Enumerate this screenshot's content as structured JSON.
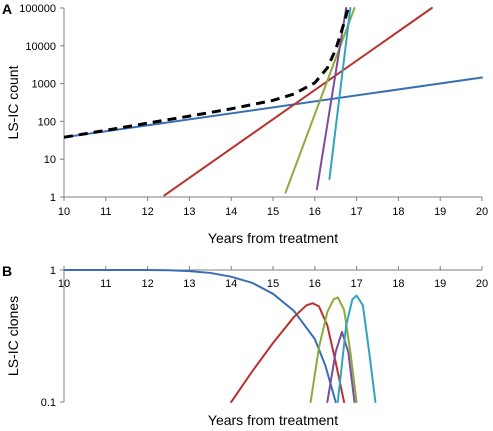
{
  "chart_data": [
    {
      "panel_label": "A",
      "type": "line",
      "xlabel": "Years from treatment",
      "ylabel": "LS-IC count",
      "xlim": [
        10,
        20
      ],
      "ylim": [
        1,
        100000
      ],
      "yscale": "log",
      "grid": false,
      "legend": "none",
      "x_ticks": [
        "10",
        "11",
        "12",
        "13",
        "14",
        "15",
        "16",
        "17",
        "18",
        "19",
        "20"
      ],
      "y_ticks": [
        "1",
        "10",
        "100",
        "1000",
        "10000",
        "100000"
      ],
      "series": [
        {
          "color": "#3a6fb5",
          "style": "solid",
          "x": [
            10,
            20
          ],
          "y": [
            38,
            1450
          ]
        },
        {
          "color": "#b8322f",
          "style": "solid",
          "x": [
            12.4,
            18.8
          ],
          "y": [
            1.1,
            100000
          ]
        },
        {
          "color": "#8aac3c",
          "style": "solid",
          "x": [
            15.3,
            16.95
          ],
          "y": [
            1.3,
            100000
          ]
        },
        {
          "color": "#7b4d9b",
          "style": "solid",
          "x": [
            16.05,
            16.75
          ],
          "y": [
            1.6,
            100000
          ]
        },
        {
          "color": "#30a5bf",
          "style": "solid",
          "x": [
            16.35,
            16.85
          ],
          "y": [
            3.0,
            100000
          ]
        },
        {
          "color": "#000000",
          "style": "dashed",
          "x": [
            10,
            11,
            12,
            13,
            14,
            15,
            15.5,
            16,
            16.3,
            16.5,
            16.7,
            16.8
          ],
          "y": [
            38,
            58,
            90,
            138,
            215,
            360,
            530,
            1050,
            2600,
            8000,
            40000,
            100000
          ]
        }
      ]
    },
    {
      "panel_label": "B",
      "type": "line",
      "xlabel": "Years from treatment",
      "ylabel": "LS-IC clones",
      "xlim": [
        10,
        20
      ],
      "ylim": [
        0.1,
        1
      ],
      "yscale": "log",
      "grid": false,
      "legend": "none",
      "x_ticks": [
        "10",
        "11",
        "12",
        "13",
        "14",
        "15",
        "16",
        "17",
        "18",
        "19",
        "20"
      ],
      "y_ticks": [
        "0.1",
        "1"
      ],
      "series": [
        {
          "color": "#3a6fb5",
          "x": [
            10,
            11,
            12,
            12.5,
            13,
            13.5,
            14,
            14.5,
            15,
            15.5,
            16,
            16.25,
            16.5
          ],
          "y": [
            1.0,
            1.0,
            1.0,
            0.995,
            0.98,
            0.95,
            0.89,
            0.8,
            0.66,
            0.49,
            0.3,
            0.19,
            0.1
          ]
        },
        {
          "color": "#b8322f",
          "x": [
            14.0,
            14.5,
            15.0,
            15.5,
            15.8,
            15.95,
            16.1,
            16.3,
            16.5,
            16.7
          ],
          "y": [
            0.1,
            0.17,
            0.28,
            0.44,
            0.54,
            0.56,
            0.53,
            0.38,
            0.2,
            0.1
          ]
        },
        {
          "color": "#8aac3c",
          "x": [
            15.9,
            16.1,
            16.3,
            16.45,
            16.55,
            16.7,
            16.85,
            17.0
          ],
          "y": [
            0.1,
            0.26,
            0.48,
            0.6,
            0.62,
            0.5,
            0.24,
            0.1
          ]
        },
        {
          "color": "#7b4d9b",
          "x": [
            16.3,
            16.5,
            16.65,
            16.8,
            16.95
          ],
          "y": [
            0.1,
            0.24,
            0.34,
            0.24,
            0.1
          ]
        },
        {
          "color": "#30a5bf",
          "x": [
            16.55,
            16.75,
            16.9,
            17.0,
            17.15,
            17.3,
            17.45
          ],
          "y": [
            0.1,
            0.38,
            0.6,
            0.64,
            0.54,
            0.24,
            0.1
          ]
        }
      ]
    }
  ]
}
